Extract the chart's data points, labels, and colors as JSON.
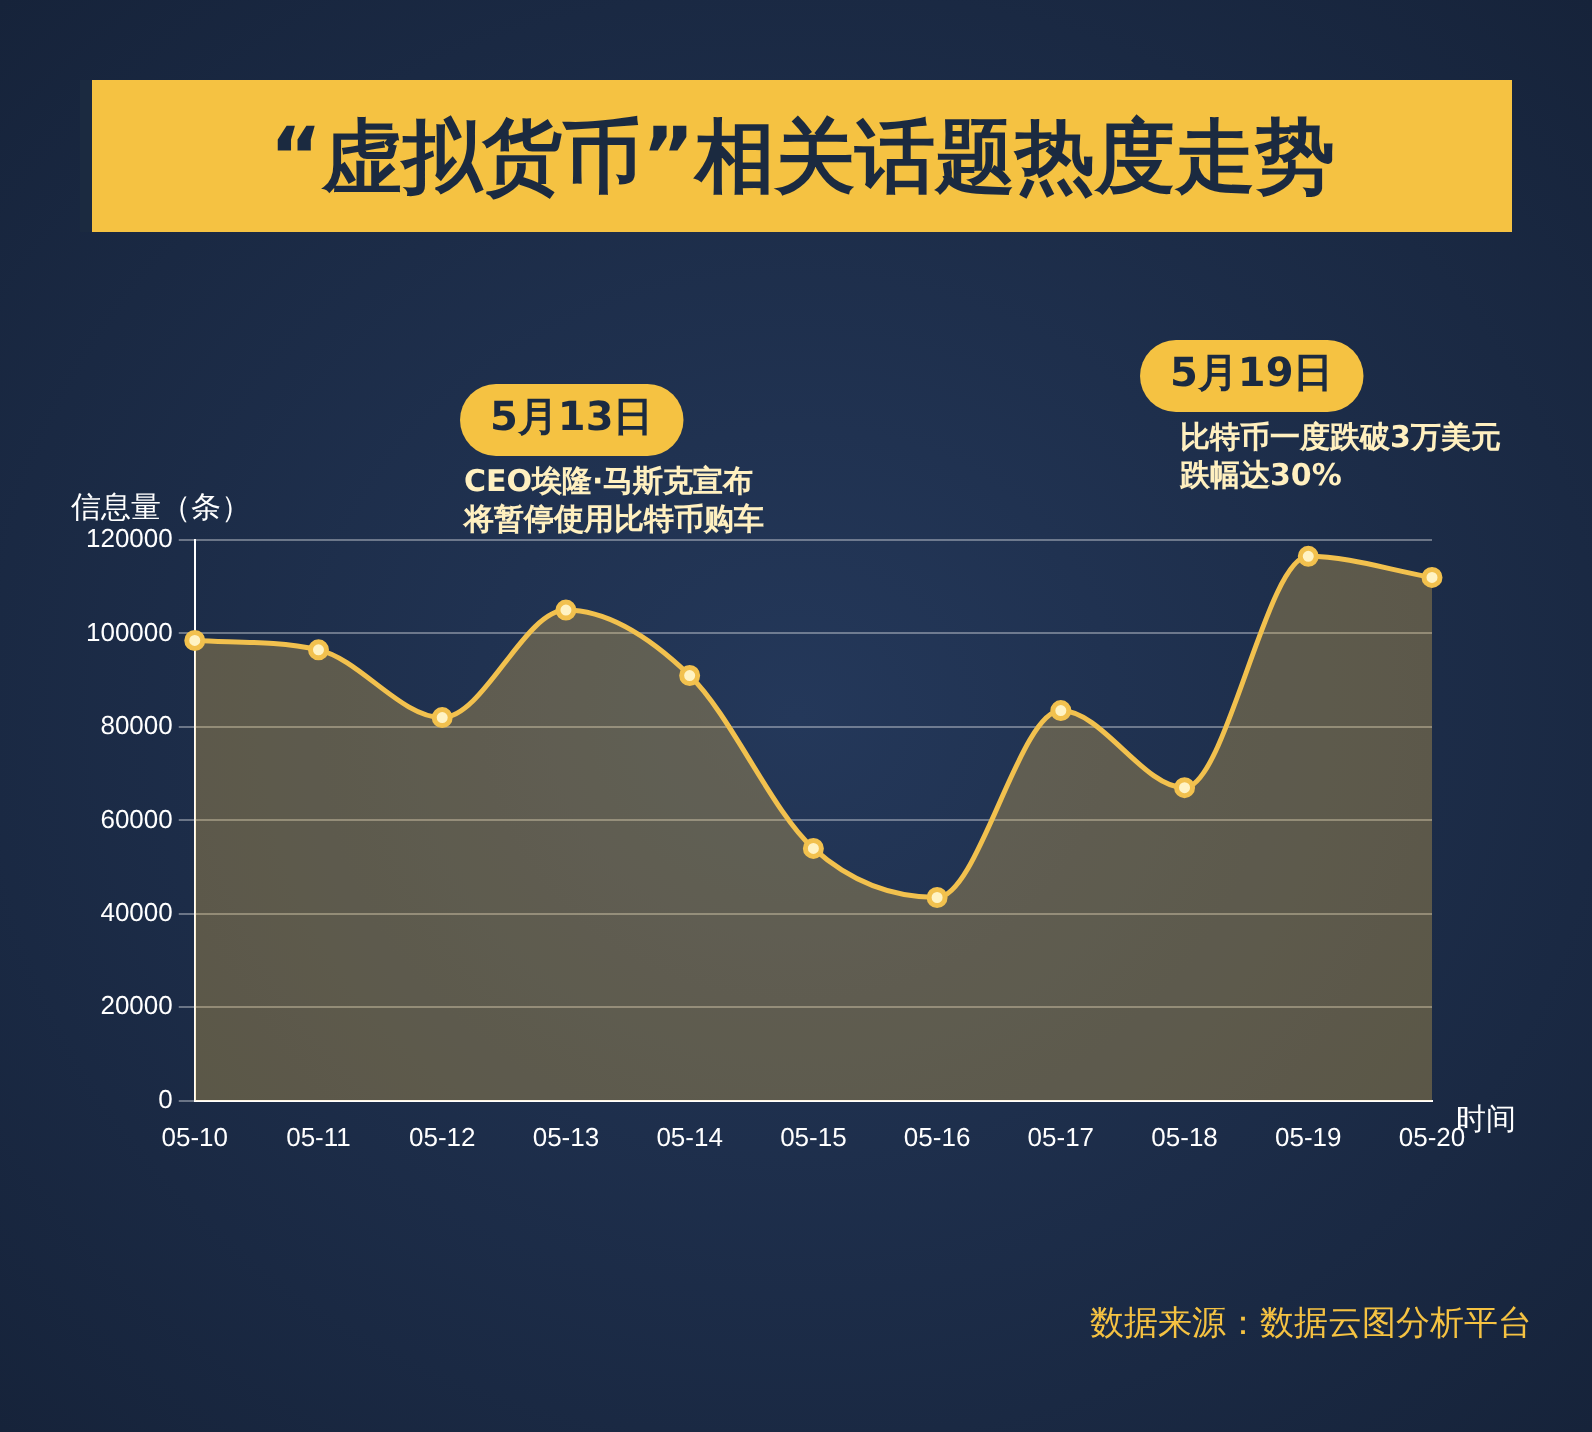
{
  "chart_data": {
    "type": "area",
    "title": "“虚拟货币”相关话题热度走势",
    "ylabel": "信息量（条）",
    "xlabel": "时间",
    "categories": [
      "05-10",
      "05-11",
      "05-12",
      "05-13",
      "05-14",
      "05-15",
      "05-16",
      "05-17",
      "05-18",
      "05-19",
      "05-20"
    ],
    "series": [
      {
        "color": "#f2c14e",
        "values": [
          98500,
          96500,
          82000,
          105000,
          91000,
          54000,
          43500,
          83500,
          67000,
          116500,
          112000
        ]
      }
    ],
    "ylim": [
      0,
      120000
    ],
    "yticks": [
      0,
      20000,
      40000,
      60000,
      80000,
      100000,
      120000
    ],
    "grid": "y",
    "legend": false,
    "marker": "circle",
    "line_style": "solid",
    "annotations": [
      "5月13日",
      "CEO埃隆·马斯克宣布",
      "将暂停使用比特币购车",
      "5月19日",
      "比特币一度跌破3万美元",
      "跌幅达30%",
      "数据来源：数据云图分析平台"
    ]
  }
}
